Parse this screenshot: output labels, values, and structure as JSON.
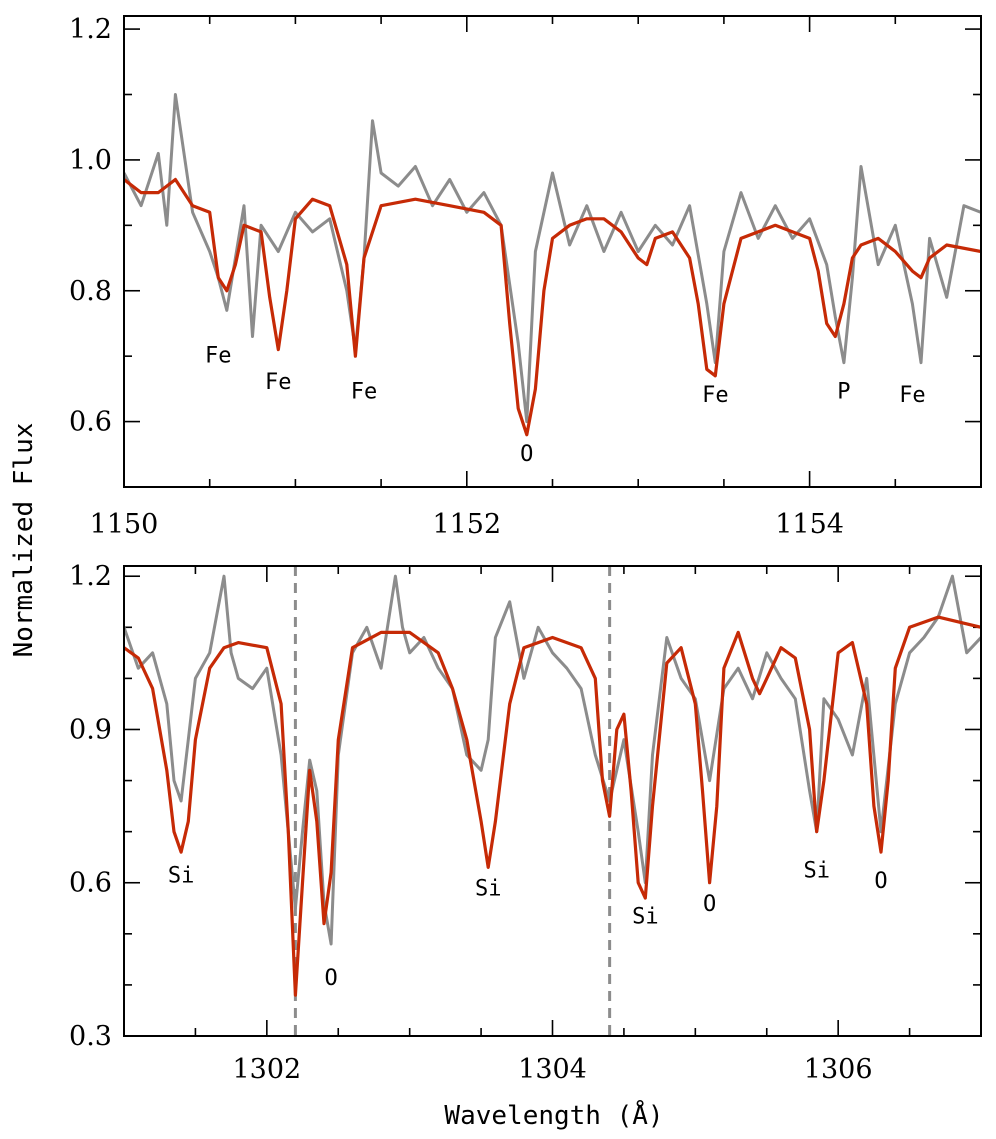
{
  "colors": {
    "observed": "#8c8c8c",
    "model": "#c62a06",
    "axes": "#000000"
  },
  "ylabel": "Normalized Flux",
  "xlabel": "Wavelength (Å)",
  "chart_data": [
    {
      "type": "line",
      "panel": "top",
      "xlim": [
        1150,
        1155
      ],
      "ylim": [
        0.5,
        1.22
      ],
      "xticks": [
        "1150",
        "1152",
        "1154"
      ],
      "xtick_values": [
        1150,
        1152,
        1154
      ],
      "yticks": [
        "0.6",
        "0.8",
        "1.0",
        "1.2"
      ],
      "ytick_values": [
        0.6,
        0.8,
        1.0,
        1.2
      ],
      "minor_xtick_step": 0.5,
      "minor_ytick_step": 0.1,
      "series": [
        {
          "role": "observed",
          "x": [
            1150.0,
            1150.1,
            1150.2,
            1150.25,
            1150.3,
            1150.4,
            1150.5,
            1150.55,
            1150.6,
            1150.7,
            1150.75,
            1150.8,
            1150.9,
            1151.0,
            1151.1,
            1151.2,
            1151.3,
            1151.35,
            1151.4,
            1151.45,
            1151.5,
            1151.6,
            1151.7,
            1151.8,
            1151.9,
            1152.0,
            1152.1,
            1152.2,
            1152.3,
            1152.35,
            1152.4,
            1152.5,
            1152.6,
            1152.7,
            1152.8,
            1152.9,
            1153.0,
            1153.1,
            1153.2,
            1153.3,
            1153.4,
            1153.45,
            1153.5,
            1153.6,
            1153.7,
            1153.8,
            1153.9,
            1154.0,
            1154.1,
            1154.15,
            1154.2,
            1154.25,
            1154.3,
            1154.4,
            1154.5,
            1154.6,
            1154.65,
            1154.7,
            1154.8,
            1154.9,
            1155.0
          ],
          "y": [
            0.98,
            0.93,
            1.01,
            0.9,
            1.1,
            0.92,
            0.86,
            0.82,
            0.77,
            0.93,
            0.73,
            0.9,
            0.86,
            0.92,
            0.89,
            0.91,
            0.8,
            0.71,
            0.85,
            1.06,
            0.98,
            0.96,
            0.99,
            0.93,
            0.97,
            0.92,
            0.95,
            0.9,
            0.72,
            0.6,
            0.86,
            0.98,
            0.87,
            0.93,
            0.86,
            0.92,
            0.86,
            0.9,
            0.87,
            0.93,
            0.78,
            0.69,
            0.86,
            0.95,
            0.88,
            0.93,
            0.88,
            0.91,
            0.84,
            0.76,
            0.69,
            0.82,
            0.99,
            0.84,
            0.9,
            0.78,
            0.69,
            0.88,
            0.79,
            0.93,
            0.92
          ]
        },
        {
          "role": "model",
          "x": [
            1150.0,
            1150.1,
            1150.2,
            1150.3,
            1150.4,
            1150.5,
            1150.55,
            1150.6,
            1150.65,
            1150.7,
            1150.8,
            1150.85,
            1150.9,
            1150.95,
            1151.0,
            1151.1,
            1151.2,
            1151.3,
            1151.35,
            1151.4,
            1151.5,
            1151.7,
            1151.9,
            1152.1,
            1152.2,
            1152.25,
            1152.3,
            1152.35,
            1152.4,
            1152.45,
            1152.5,
            1152.6,
            1152.7,
            1152.8,
            1152.9,
            1153.0,
            1153.05,
            1153.1,
            1153.2,
            1153.3,
            1153.35,
            1153.4,
            1153.45,
            1153.5,
            1153.6,
            1153.8,
            1154.0,
            1154.05,
            1154.1,
            1154.15,
            1154.2,
            1154.25,
            1154.3,
            1154.4,
            1154.5,
            1154.6,
            1154.65,
            1154.7,
            1154.8,
            1155.0
          ],
          "y": [
            0.97,
            0.95,
            0.95,
            0.97,
            0.93,
            0.92,
            0.82,
            0.8,
            0.84,
            0.9,
            0.89,
            0.79,
            0.71,
            0.8,
            0.91,
            0.94,
            0.93,
            0.84,
            0.7,
            0.85,
            0.93,
            0.94,
            0.93,
            0.92,
            0.9,
            0.75,
            0.62,
            0.58,
            0.65,
            0.8,
            0.88,
            0.9,
            0.91,
            0.91,
            0.89,
            0.85,
            0.84,
            0.88,
            0.89,
            0.85,
            0.78,
            0.68,
            0.67,
            0.78,
            0.88,
            0.9,
            0.88,
            0.83,
            0.75,
            0.73,
            0.78,
            0.85,
            0.87,
            0.88,
            0.86,
            0.83,
            0.82,
            0.85,
            0.87,
            0.86
          ]
        }
      ],
      "annotations": [
        {
          "text": "Fe",
          "x": 1150.55,
          "y": 0.69
        },
        {
          "text": "Fe",
          "x": 1150.9,
          "y": 0.65
        },
        {
          "text": "Fe",
          "x": 1151.4,
          "y": 0.635
        },
        {
          "text": "O",
          "x": 1152.35,
          "y": 0.54
        },
        {
          "text": "Fe",
          "x": 1153.45,
          "y": 0.63
        },
        {
          "text": "P",
          "x": 1154.2,
          "y": 0.635
        },
        {
          "text": "Fe",
          "x": 1154.6,
          "y": 0.63
        }
      ]
    },
    {
      "type": "line",
      "panel": "bottom",
      "xlim": [
        1301.0,
        1307.0
      ],
      "ylim": [
        0.3,
        1.22
      ],
      "xticks": [
        "1302",
        "1304",
        "1306"
      ],
      "xtick_values": [
        1302,
        1304,
        1306
      ],
      "yticks": [
        "0.3",
        "0.6",
        "0.9",
        "1.2"
      ],
      "ytick_values": [
        0.3,
        0.6,
        0.9,
        1.2
      ],
      "minor_xtick_step": 0.5,
      "minor_ytick_step": 0.1,
      "vlines": [
        1302.2,
        1304.4
      ],
      "series": [
        {
          "role": "observed",
          "x": [
            1301.0,
            1301.1,
            1301.2,
            1301.3,
            1301.35,
            1301.4,
            1301.45,
            1301.5,
            1301.6,
            1301.7,
            1301.75,
            1301.8,
            1301.9,
            1302.0,
            1302.1,
            1302.2,
            1302.25,
            1302.3,
            1302.35,
            1302.4,
            1302.45,
            1302.5,
            1302.6,
            1302.7,
            1302.8,
            1302.9,
            1302.95,
            1303.0,
            1303.1,
            1303.2,
            1303.3,
            1303.4,
            1303.5,
            1303.55,
            1303.6,
            1303.7,
            1303.8,
            1303.9,
            1304.0,
            1304.1,
            1304.2,
            1304.3,
            1304.4,
            1304.5,
            1304.6,
            1304.65,
            1304.7,
            1304.8,
            1304.9,
            1305.0,
            1305.1,
            1305.2,
            1305.3,
            1305.4,
            1305.5,
            1305.6,
            1305.7,
            1305.8,
            1305.85,
            1305.9,
            1306.0,
            1306.1,
            1306.2,
            1306.3,
            1306.4,
            1306.5,
            1306.6,
            1306.7,
            1306.8,
            1306.9,
            1307.0
          ],
          "y": [
            1.1,
            1.02,
            1.05,
            0.95,
            0.8,
            0.76,
            0.88,
            1.0,
            1.05,
            1.2,
            1.05,
            1.0,
            0.98,
            1.02,
            0.85,
            0.55,
            0.7,
            0.84,
            0.78,
            0.56,
            0.48,
            0.85,
            1.05,
            1.1,
            1.02,
            1.2,
            1.1,
            1.05,
            1.08,
            1.02,
            0.98,
            0.85,
            0.82,
            0.88,
            1.08,
            1.15,
            1.0,
            1.1,
            1.05,
            1.02,
            0.98,
            0.85,
            0.76,
            0.88,
            0.7,
            0.6,
            0.85,
            1.08,
            1.0,
            0.96,
            0.8,
            0.98,
            1.02,
            0.96,
            1.05,
            1.0,
            0.96,
            0.78,
            0.7,
            0.96,
            0.92,
            0.85,
            1.0,
            0.7,
            0.95,
            1.05,
            1.08,
            1.12,
            1.2,
            1.05,
            1.08
          ]
        },
        {
          "role": "model",
          "x": [
            1301.0,
            1301.1,
            1301.2,
            1301.3,
            1301.35,
            1301.4,
            1301.45,
            1301.5,
            1301.6,
            1301.7,
            1301.8,
            1302.0,
            1302.1,
            1302.15,
            1302.2,
            1302.25,
            1302.3,
            1302.35,
            1302.4,
            1302.45,
            1302.5,
            1302.6,
            1302.8,
            1303.0,
            1303.2,
            1303.3,
            1303.4,
            1303.5,
            1303.55,
            1303.6,
            1303.7,
            1303.8,
            1304.0,
            1304.2,
            1304.3,
            1304.35,
            1304.4,
            1304.45,
            1304.5,
            1304.55,
            1304.6,
            1304.65,
            1304.7,
            1304.8,
            1304.9,
            1305.0,
            1305.05,
            1305.1,
            1305.15,
            1305.2,
            1305.3,
            1305.4,
            1305.45,
            1305.5,
            1305.6,
            1305.7,
            1305.8,
            1305.85,
            1305.9,
            1306.0,
            1306.1,
            1306.2,
            1306.25,
            1306.3,
            1306.35,
            1306.4,
            1306.5,
            1306.7,
            1307.0
          ],
          "y": [
            1.06,
            1.04,
            0.98,
            0.82,
            0.7,
            0.66,
            0.72,
            0.88,
            1.02,
            1.06,
            1.07,
            1.06,
            0.95,
            0.7,
            0.38,
            0.6,
            0.82,
            0.72,
            0.52,
            0.62,
            0.88,
            1.06,
            1.09,
            1.09,
            1.05,
            0.98,
            0.88,
            0.72,
            0.63,
            0.72,
            0.95,
            1.06,
            1.08,
            1.06,
            1.0,
            0.8,
            0.73,
            0.9,
            0.93,
            0.78,
            0.6,
            0.57,
            0.75,
            1.03,
            1.06,
            0.95,
            0.78,
            0.6,
            0.75,
            1.02,
            1.09,
            1.0,
            0.97,
            1.0,
            1.06,
            1.04,
            0.9,
            0.7,
            0.8,
            1.05,
            1.07,
            0.95,
            0.75,
            0.66,
            0.8,
            1.02,
            1.1,
            1.12,
            1.1
          ]
        }
      ],
      "annotations": [
        {
          "text": "Si",
          "x": 1301.4,
          "y": 0.6
        },
        {
          "text": "O",
          "x": 1302.45,
          "y": 0.4
        },
        {
          "text": "Si",
          "x": 1303.55,
          "y": 0.575
        },
        {
          "text": "Si",
          "x": 1304.65,
          "y": 0.52
        },
        {
          "text": "O",
          "x": 1305.1,
          "y": 0.545
        },
        {
          "text": "Si",
          "x": 1305.85,
          "y": 0.61
        },
        {
          "text": "O",
          "x": 1306.3,
          "y": 0.59
        }
      ]
    }
  ]
}
